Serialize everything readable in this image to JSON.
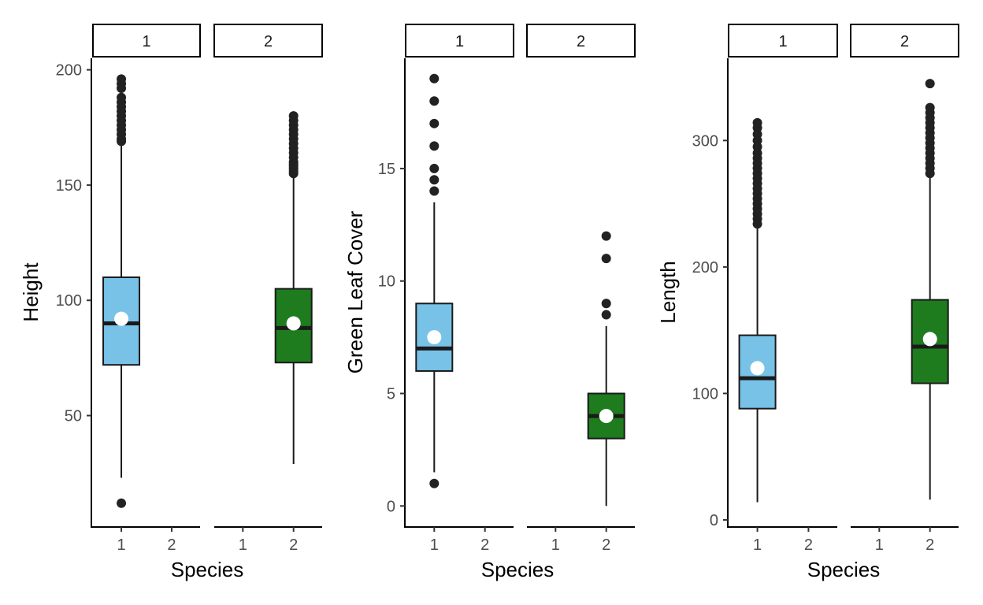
{
  "chart_data": [
    {
      "type": "boxplot",
      "ylabel": "Height",
      "xlabel": "Species",
      "facet_labels": [
        "1",
        "2"
      ],
      "x_categories": [
        "1",
        "2"
      ],
      "ylim": [
        2,
        205
      ],
      "yticks": [
        50,
        100,
        150,
        200
      ],
      "boxes": [
        {
          "facet": "1",
          "species": "1",
          "fill": "#78C2E8",
          "whisker_low": 23,
          "q1": 72,
          "median": 90,
          "q3": 110,
          "whisker_high": 168,
          "mean": 92,
          "outliers": [
            12,
            169,
            170,
            172,
            174,
            176,
            178,
            180,
            182,
            184,
            186,
            188,
            192,
            194,
            196
          ]
        },
        {
          "facet": "2",
          "species": "2",
          "fill": "#1E7B1E",
          "whisker_low": 29,
          "q1": 73,
          "median": 88,
          "q3": 105,
          "whisker_high": 154,
          "mean": 90,
          "outliers": [
            155,
            156,
            157,
            158,
            159,
            160,
            162,
            164,
            166,
            168,
            170,
            172,
            174,
            176,
            178,
            180
          ]
        }
      ]
    },
    {
      "type": "boxplot",
      "ylabel": "Green Leaf Cover",
      "xlabel": "Species",
      "facet_labels": [
        "1",
        "2"
      ],
      "x_categories": [
        "1",
        "2"
      ],
      "ylim": [
        -0.9,
        19.9
      ],
      "yticks": [
        0,
        5,
        10,
        15
      ],
      "boxes": [
        {
          "facet": "1",
          "species": "1",
          "fill": "#78C2E8",
          "whisker_low": 1.5,
          "q1": 6,
          "median": 7,
          "q3": 9,
          "whisker_high": 13.5,
          "mean": 7.5,
          "outliers": [
            1,
            14,
            14.5,
            15,
            16,
            17,
            18,
            19
          ]
        },
        {
          "facet": "2",
          "species": "2",
          "fill": "#1E7B1E",
          "whisker_low": 0,
          "q1": 3,
          "median": 4,
          "q3": 5,
          "whisker_high": 8,
          "mean": 4,
          "outliers": [
            8.5,
            9,
            11,
            12
          ]
        }
      ]
    },
    {
      "type": "boxplot",
      "ylabel": "Length",
      "xlabel": "Species",
      "facet_labels": [
        "1",
        "2"
      ],
      "x_categories": [
        "1",
        "2"
      ],
      "ylim": [
        -5,
        365
      ],
      "yticks": [
        0,
        100,
        200,
        300
      ],
      "boxes": [
        {
          "facet": "1",
          "species": "1",
          "fill": "#78C2E8",
          "whisker_low": 14,
          "q1": 88,
          "median": 112,
          "q3": 146,
          "whisker_high": 232,
          "mean": 120,
          "outliers": [
            234,
            238,
            242,
            246,
            250,
            254,
            258,
            262,
            266,
            270,
            274,
            278,
            282,
            286,
            290,
            295,
            300,
            305,
            310,
            314
          ]
        },
        {
          "facet": "2",
          "species": "2",
          "fill": "#1E7B1E",
          "whisker_low": 16,
          "q1": 108,
          "median": 137,
          "q3": 174,
          "whisker_high": 272,
          "mean": 143,
          "outliers": [
            274,
            278,
            282,
            286,
            290,
            294,
            298,
            302,
            306,
            310,
            314,
            318,
            322,
            326,
            345
          ]
        }
      ]
    }
  ]
}
